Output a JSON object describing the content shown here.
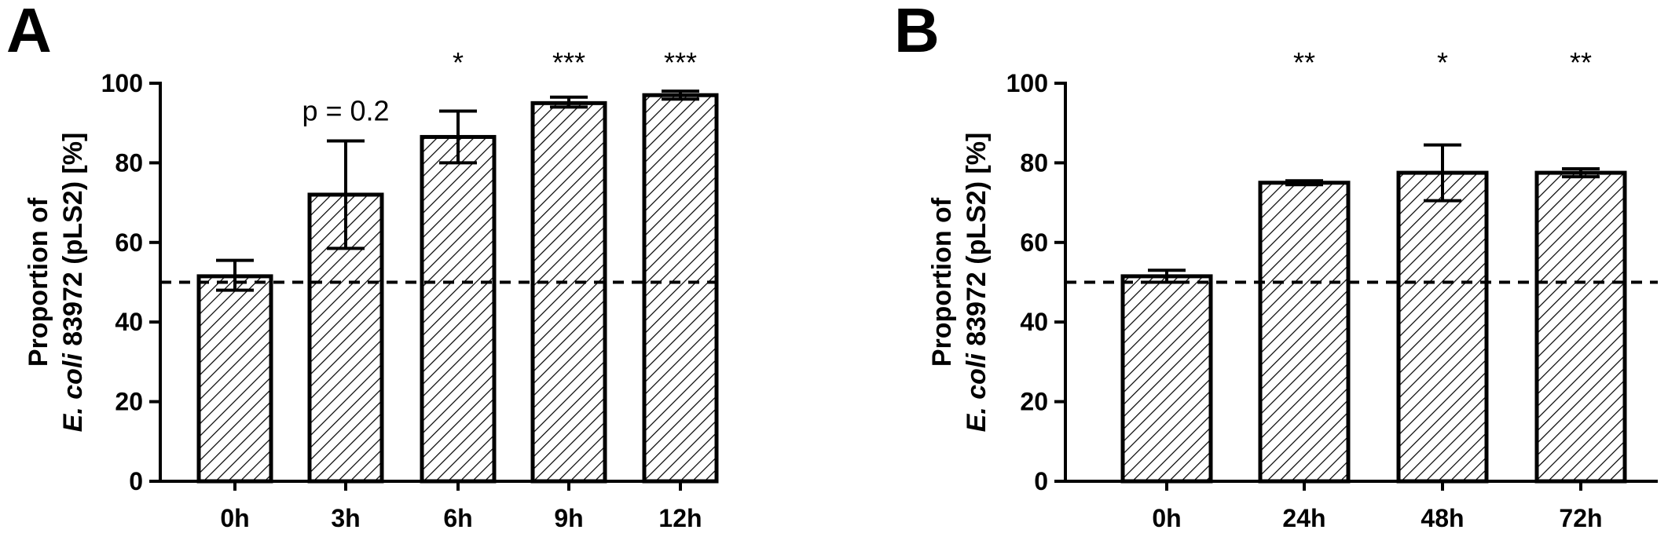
{
  "chart_data": [
    {
      "type": "bar",
      "panel_label": "A",
      "categories": [
        "0h",
        "3h",
        "6h",
        "9h",
        "12h"
      ],
      "values": [
        51.5,
        72,
        86.5,
        95,
        97
      ],
      "error_low": [
        48,
        58.5,
        80,
        94,
        96
      ],
      "error_high": [
        55.5,
        85.5,
        93,
        96.5,
        98
      ],
      "annotations": [
        "",
        "p = 0.2",
        "*",
        "***",
        "***"
      ],
      "ylabel_line1": "Proportion of",
      "ylabel_line2_italic": "E. coli",
      "ylabel_line2_rest": " 83972 (pLS2) [%]",
      "ylim": [
        0,
        100
      ],
      "yticks": [
        0,
        20,
        40,
        60,
        80,
        100
      ],
      "reference_line": 50,
      "pattern": "diagonal-hatch"
    },
    {
      "type": "bar",
      "panel_label": "B",
      "categories": [
        "0h",
        "24h",
        "48h",
        "72h"
      ],
      "values": [
        51.5,
        75,
        77.5,
        77.5
      ],
      "error_low": [
        50,
        74.5,
        70.5,
        76.5
      ],
      "error_high": [
        53,
        75.5,
        84.5,
        78.5
      ],
      "annotations": [
        "",
        "**",
        "*",
        "**"
      ],
      "ylabel_line1": "Proportion of",
      "ylabel_line2_italic": "E. coli",
      "ylabel_line2_rest": " 83972 (pLS2) [%]",
      "ylim": [
        0,
        100
      ],
      "yticks": [
        0,
        20,
        40,
        60,
        80,
        100
      ],
      "reference_line": 50,
      "pattern": "diagonal-hatch"
    }
  ]
}
